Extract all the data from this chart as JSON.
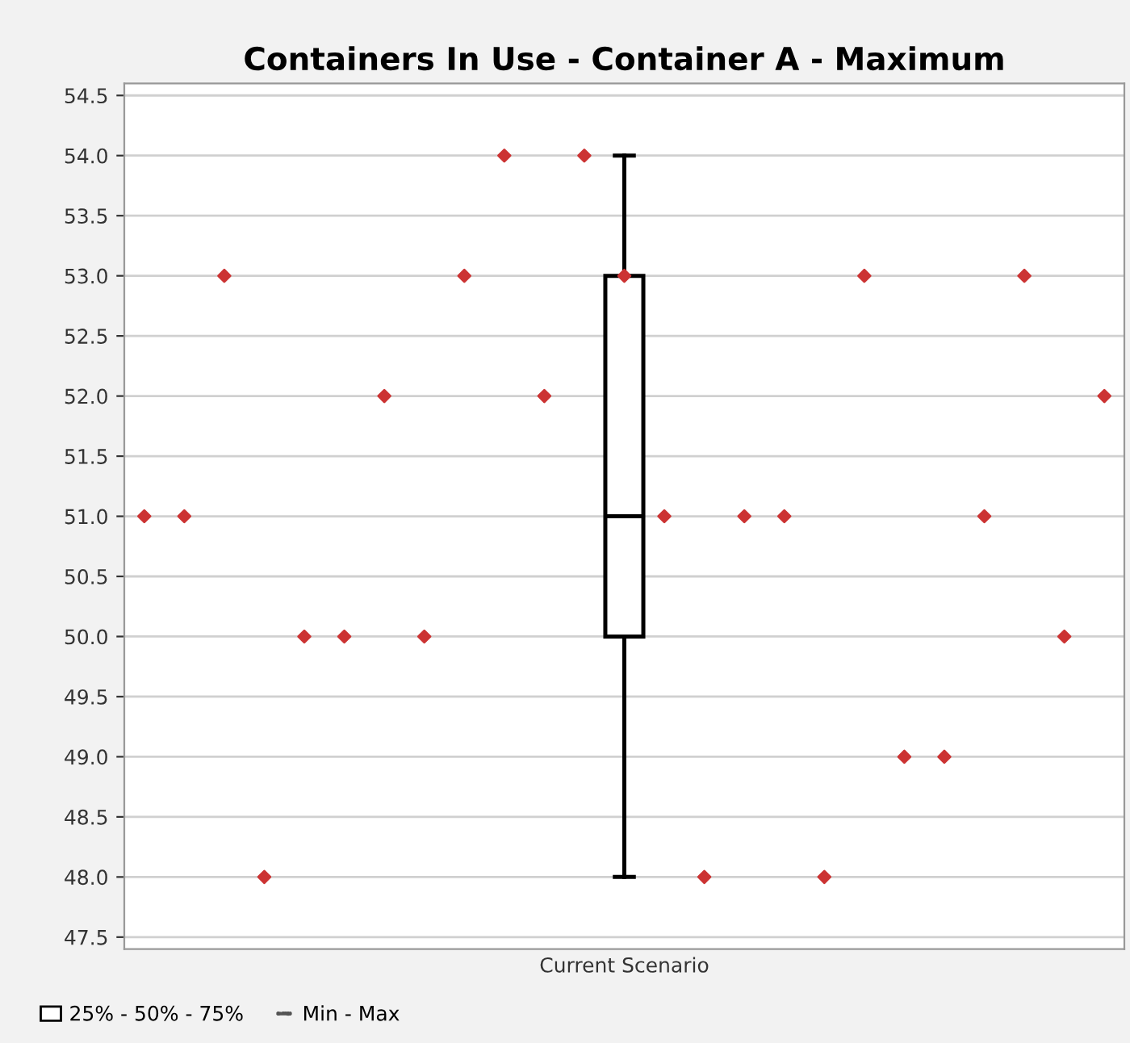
{
  "chart_data": {
    "type": "box",
    "title": "Containers In Use - Container A - Maximum",
    "categories": [
      null,
      null,
      null,
      null,
      null,
      null,
      null,
      null,
      null,
      null,
      null,
      null,
      "Current Scenario",
      null,
      null,
      null,
      null,
      null,
      null,
      null,
      null,
      null,
      null,
      null,
      null
    ],
    "ylim": [
      47.4,
      54.6
    ],
    "yticks": [
      {
        "value": 47.5,
        "label": "47.5"
      },
      {
        "value": 48,
        "label": "48.0"
      },
      {
        "value": 48.5,
        "label": "48.5"
      },
      {
        "value": 49,
        "label": "49.0"
      },
      {
        "value": 49.5,
        "label": "49.5"
      },
      {
        "value": 50,
        "label": "50.0"
      },
      {
        "value": 50.5,
        "label": "50.5"
      },
      {
        "value": 51,
        "label": "51.0"
      },
      {
        "value": 51.5,
        "label": "51.5"
      },
      {
        "value": 52,
        "label": "52.0"
      },
      {
        "value": 52.5,
        "label": "52.5"
      },
      {
        "value": 53,
        "label": "53.0"
      },
      {
        "value": 53.5,
        "label": "53.5"
      },
      {
        "value": 54,
        "label": "54.0"
      },
      {
        "value": 54.5,
        "label": "54.5"
      }
    ],
    "grid": "y",
    "legend": "bottom left",
    "annotations": [
      "Min - Max"
    ],
    "series": [
      {
        "type": "box",
        "name": "25% - 50% - 75%",
        "color": "#000000",
        "boxes": [
          null,
          null,
          null,
          null,
          null,
          null,
          null,
          null,
          null,
          null,
          null,
          null,
          {
            "low": 48,
            "q1": 50,
            "median": 51,
            "q3": 53,
            "high": 54
          },
          null,
          null,
          null,
          null,
          null,
          null,
          null,
          null,
          null,
          null,
          null,
          null
        ]
      },
      {
        "type": "scatter",
        "color": "#cc3333",
        "marker": "diamond",
        "values": [
          51,
          51,
          53,
          48,
          50,
          50,
          52,
          50,
          53,
          54,
          52,
          54,
          53,
          51,
          48,
          51,
          51,
          48,
          53,
          49,
          49,
          51,
          53,
          50,
          52
        ]
      }
    ]
  }
}
